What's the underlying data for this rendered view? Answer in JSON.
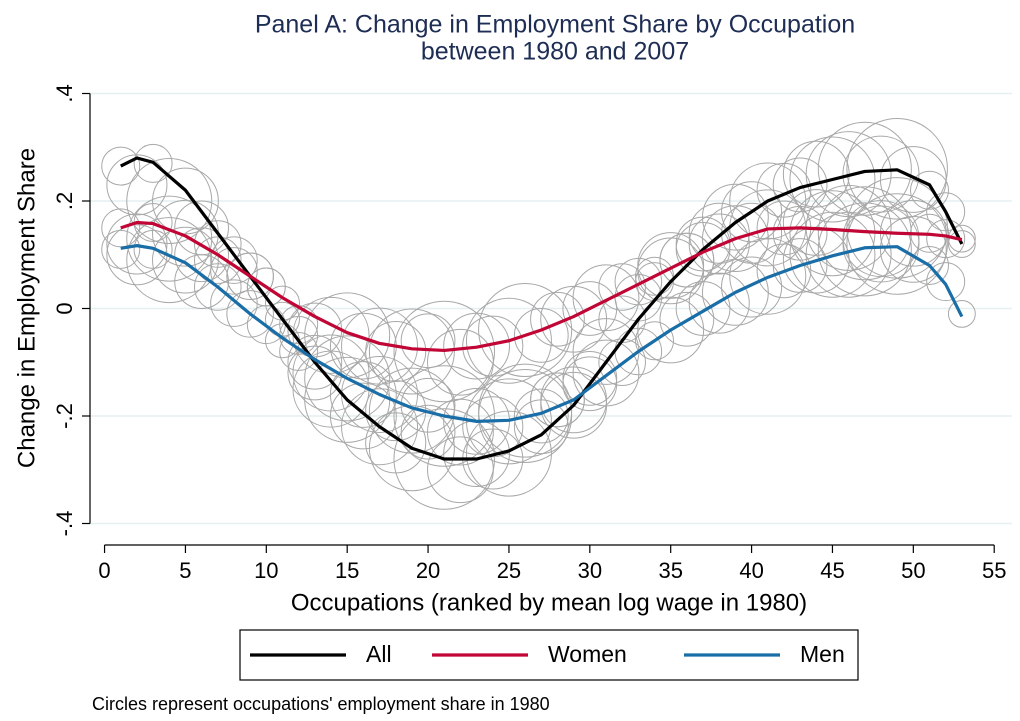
{
  "chart_data": {
    "type": "line",
    "title": [
      "Panel A: Change in Employment Share by Occupation",
      "between 1980 and 2007"
    ],
    "x_label": "Occupations (ranked by mean log wage in 1980)",
    "y_label": "Change in Employment Share",
    "note": "Circles represent occupations' employment share in 1980",
    "xlim": [
      -0.9,
      56.1
    ],
    "ylim": [
      -0.44,
      0.44
    ],
    "xticks": [
      0,
      5,
      10,
      15,
      20,
      25,
      30,
      35,
      40,
      45,
      50,
      55
    ],
    "yticks": [
      {
        "value": -0.4,
        "label": "-.4"
      },
      {
        "value": -0.2,
        "label": "-.2"
      },
      0,
      {
        "value": 0.2,
        "label": ".2"
      },
      {
        "value": 0.4,
        "label": ".4"
      }
    ],
    "grid": true,
    "legend": "bottom",
    "bubble_color": "#a8a8a8",
    "x": [
      1,
      2,
      3,
      5,
      7,
      9,
      11,
      13,
      15,
      17,
      19,
      21,
      23,
      25,
      27,
      29,
      31,
      33,
      35,
      37,
      39,
      41,
      43,
      45,
      47,
      49,
      51,
      52,
      53
    ],
    "series": [
      {
        "name": "All",
        "color": "#000000",
        "values": [
          0.265,
          0.28,
          0.272,
          0.22,
          0.14,
          0.06,
          -0.02,
          -0.1,
          -0.17,
          -0.22,
          -0.26,
          -0.28,
          -0.28,
          -0.265,
          -0.235,
          -0.18,
          -0.1,
          -0.02,
          0.05,
          0.11,
          0.16,
          0.2,
          0.225,
          0.24,
          0.255,
          0.258,
          0.23,
          0.18,
          0.12
        ],
        "bubble_values": [
          0.265,
          0.23,
          0.27,
          0.2,
          0.2,
          0.15,
          0.12,
          0.09,
          0.06,
          0.04,
          -0.02,
          -0.05,
          -0.12,
          -0.15,
          -0.17,
          -0.2,
          -0.22,
          -0.25,
          -0.26,
          -0.23,
          -0.28,
          -0.3,
          -0.27,
          -0.28,
          -0.27,
          -0.2,
          -0.22,
          -0.17,
          -0.18,
          -0.13,
          -0.08,
          -0.02,
          0.02,
          0.05,
          0.07,
          0.09,
          0.12,
          0.14,
          0.17,
          0.18,
          0.2,
          0.22,
          0.23,
          0.25,
          0.24,
          0.25,
          0.26,
          0.25,
          0.26,
          0.24,
          0.22,
          0.18,
          0.12
        ]
      },
      {
        "name": "Women",
        "color": "#c10534",
        "values": [
          0.15,
          0.16,
          0.158,
          0.135,
          0.1,
          0.06,
          0.02,
          -0.015,
          -0.045,
          -0.065,
          -0.075,
          -0.078,
          -0.072,
          -0.06,
          -0.04,
          -0.015,
          0.015,
          0.045,
          0.075,
          0.105,
          0.13,
          0.148,
          0.15,
          0.147,
          0.143,
          0.14,
          0.138,
          0.135,
          0.128
        ],
        "bubble_values": [
          0.15,
          0.12,
          0.16,
          0.13,
          0.14,
          0.1,
          0.09,
          0.07,
          0.06,
          0.04,
          0.01,
          -0.03,
          -0.04,
          -0.05,
          -0.05,
          -0.07,
          -0.07,
          -0.08,
          -0.08,
          -0.06,
          -0.08,
          -0.1,
          -0.07,
          -0.07,
          -0.06,
          -0.04,
          -0.05,
          -0.02,
          -0.02,
          0,
          0.02,
          0.04,
          0.05,
          0.06,
          0.08,
          0.09,
          0.11,
          0.12,
          0.13,
          0.14,
          0.15,
          0.15,
          0.14,
          0.16,
          0.14,
          0.15,
          0.14,
          0.13,
          0.15,
          0.14,
          0.14,
          0.13,
          0.13
        ]
      },
      {
        "name": "Men",
        "color": "#1a6ea7",
        "values": [
          0.112,
          0.117,
          0.112,
          0.085,
          0.04,
          -0.01,
          -0.055,
          -0.095,
          -0.13,
          -0.16,
          -0.185,
          -0.2,
          -0.21,
          -0.208,
          -0.195,
          -0.17,
          -0.125,
          -0.08,
          -0.04,
          -0.005,
          0.03,
          0.058,
          0.08,
          0.098,
          0.113,
          0.115,
          0.08,
          0.045,
          -0.015
        ],
        "bubble_values": [
          0.11,
          0.1,
          0.11,
          0.09,
          0.09,
          0.05,
          0.04,
          0.01,
          -0.01,
          -0.03,
          -0.06,
          -0.08,
          -0.1,
          -0.12,
          -0.13,
          -0.16,
          -0.16,
          -0.19,
          -0.19,
          -0.18,
          -0.2,
          -0.23,
          -0.21,
          -0.22,
          -0.21,
          -0.19,
          -0.2,
          -0.17,
          -0.17,
          -0.14,
          -0.12,
          -0.1,
          -0.08,
          -0.06,
          -0.04,
          -0.02,
          0,
          0.01,
          0.03,
          0.04,
          0.06,
          0.07,
          0.08,
          0.09,
          0.1,
          0.1,
          0.11,
          0.12,
          0.12,
          0.11,
          0.08,
          0.05,
          -0.01
        ]
      }
    ],
    "bubble_x": [
      1,
      2,
      3,
      4,
      5,
      6,
      7,
      8,
      9,
      10,
      11,
      12,
      13,
      14,
      15,
      16,
      17,
      18,
      19,
      20,
      21,
      22,
      23,
      24,
      25,
      26,
      27,
      28,
      29,
      30,
      31,
      32,
      33,
      34,
      35,
      36,
      37,
      38,
      39,
      40,
      41,
      42,
      43,
      44,
      45,
      46,
      47,
      48,
      49,
      50,
      51,
      52,
      53
    ],
    "bubble_sizes": [
      1,
      2.5,
      1,
      5,
      3,
      2,
      1.5,
      1.5,
      1.5,
      1,
      0.8,
      1,
      2,
      4,
      5,
      3,
      4,
      2.5,
      5,
      2,
      7,
      3,
      3,
      2.5,
      5,
      6,
      2,
      2,
      3,
      2,
      3,
      1.5,
      1.5,
      1,
      3,
      2,
      2,
      2.5,
      3,
      2.5,
      4,
      2,
      2,
      3,
      5,
      5,
      6,
      4,
      7,
      3,
      1,
      1,
      0.5
    ]
  }
}
